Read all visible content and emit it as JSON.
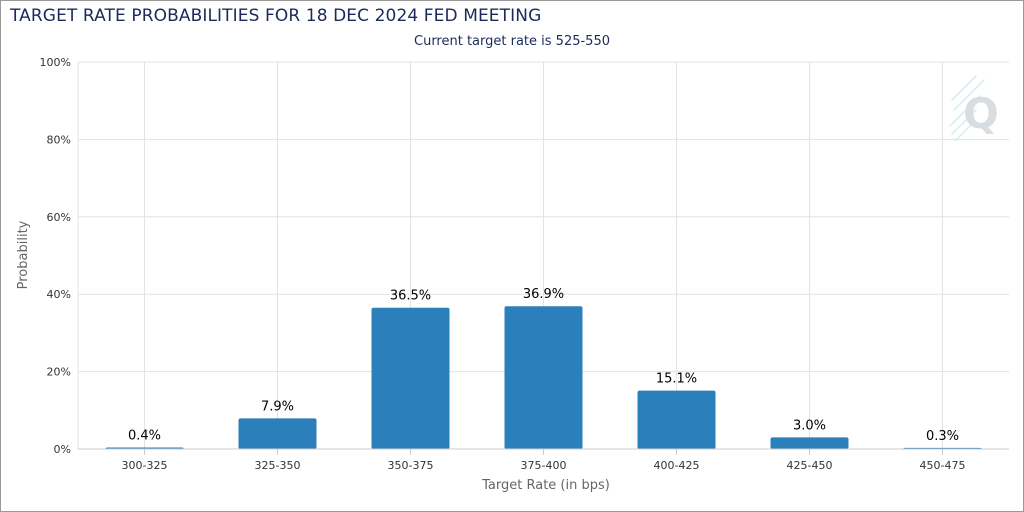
{
  "chart_data": {
    "type": "bar",
    "title": "TARGET RATE PROBABILITIES FOR 18 DEC 2024 FED MEETING",
    "subtitle": "Current target rate is 525-550",
    "xlabel": "Target Rate (in bps)",
    "ylabel": "Probability",
    "categories": [
      "300-325",
      "325-350",
      "350-375",
      "375-400",
      "400-425",
      "425-450",
      "450-475"
    ],
    "values": [
      0.4,
      7.9,
      36.5,
      36.9,
      15.1,
      3.0,
      0.3
    ],
    "data_labels": [
      "0.4%",
      "7.9%",
      "36.5%",
      "36.9%",
      "15.1%",
      "3.0%",
      "0.3%"
    ],
    "ylim": [
      0,
      100
    ],
    "yticks": [
      0,
      20,
      40,
      60,
      80,
      100
    ],
    "ytick_labels": [
      "0%",
      "20%",
      "40%",
      "60%",
      "80%",
      "100%"
    ],
    "grid": true,
    "legend": "none",
    "bar_color": "#2b7fba"
  },
  "watermark": {
    "icon": "q-logo-icon"
  },
  "colors": {
    "title": "#1c2a5a",
    "grid": "#e3e3e3",
    "axis_title": "#666666"
  }
}
